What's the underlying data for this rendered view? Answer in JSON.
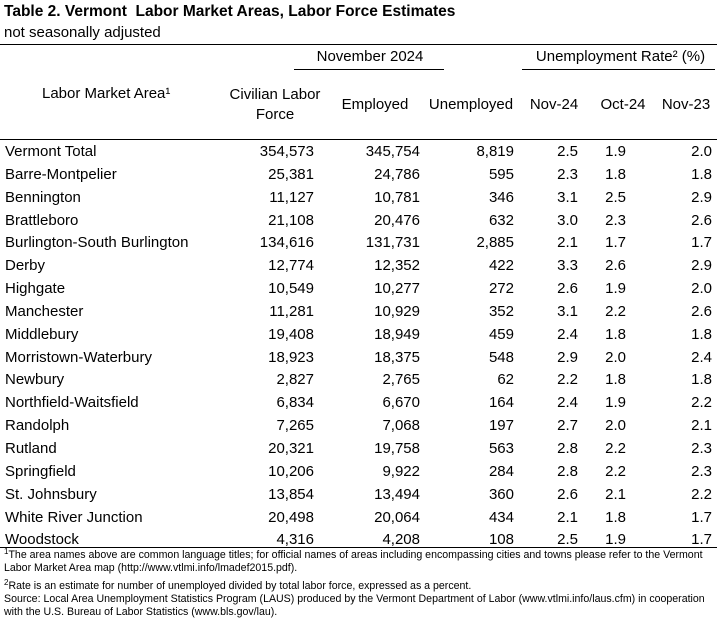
{
  "title": "Table 2. Vermont  Labor Market Areas, Labor Force Estimates",
  "subtitle": "not seasonally adjusted",
  "header": {
    "group_november": "November 2024",
    "group_rate": "Unemployment Rate² (%)",
    "area": "Labor Market Area¹",
    "civilian_line1": "Civilian Labor",
    "civilian_line2": "Force",
    "employed": "Employed",
    "unemployed": "Unemployed",
    "nov24": "Nov-24",
    "oct24": "Oct-24",
    "nov23": "Nov-23"
  },
  "rows": [
    {
      "area": "Vermont Total",
      "force": "354,573",
      "employed": "345,754",
      "unemployed": "8,819",
      "nov24": "2.5",
      "oct24": "1.9",
      "nov23": "2.0"
    },
    {
      "area": "Barre-Montpelier",
      "force": "25,381",
      "employed": "24,786",
      "unemployed": "595",
      "nov24": "2.3",
      "oct24": "1.8",
      "nov23": "1.8"
    },
    {
      "area": "Bennington",
      "force": "11,127",
      "employed": "10,781",
      "unemployed": "346",
      "nov24": "3.1",
      "oct24": "2.5",
      "nov23": "2.9"
    },
    {
      "area": "Brattleboro",
      "force": "21,108",
      "employed": "20,476",
      "unemployed": "632",
      "nov24": "3.0",
      "oct24": "2.3",
      "nov23": "2.6"
    },
    {
      "area": "Burlington-South Burlington",
      "force": "134,616",
      "employed": "131,731",
      "unemployed": "2,885",
      "nov24": "2.1",
      "oct24": "1.7",
      "nov23": "1.7"
    },
    {
      "area": "Derby",
      "force": "12,774",
      "employed": "12,352",
      "unemployed": "422",
      "nov24": "3.3",
      "oct24": "2.6",
      "nov23": "2.9"
    },
    {
      "area": "Highgate",
      "force": "10,549",
      "employed": "10,277",
      "unemployed": "272",
      "nov24": "2.6",
      "oct24": "1.9",
      "nov23": "2.0"
    },
    {
      "area": "Manchester",
      "force": "11,281",
      "employed": "10,929",
      "unemployed": "352",
      "nov24": "3.1",
      "oct24": "2.2",
      "nov23": "2.6"
    },
    {
      "area": "Middlebury",
      "force": "19,408",
      "employed": "18,949",
      "unemployed": "459",
      "nov24": "2.4",
      "oct24": "1.8",
      "nov23": "1.8"
    },
    {
      "area": "Morristown-Waterbury",
      "force": "18,923",
      "employed": "18,375",
      "unemployed": "548",
      "nov24": "2.9",
      "oct24": "2.0",
      "nov23": "2.4"
    },
    {
      "area": "Newbury",
      "force": "2,827",
      "employed": "2,765",
      "unemployed": "62",
      "nov24": "2.2",
      "oct24": "1.8",
      "nov23": "1.8"
    },
    {
      "area": "Northfield-Waitsfield",
      "force": "6,834",
      "employed": "6,670",
      "unemployed": "164",
      "nov24": "2.4",
      "oct24": "1.9",
      "nov23": "2.2"
    },
    {
      "area": "Randolph",
      "force": "7,265",
      "employed": "7,068",
      "unemployed": "197",
      "nov24": "2.7",
      "oct24": "2.0",
      "nov23": "2.1"
    },
    {
      "area": "Rutland",
      "force": "20,321",
      "employed": "19,758",
      "unemployed": "563",
      "nov24": "2.8",
      "oct24": "2.2",
      "nov23": "2.3"
    },
    {
      "area": "Springfield",
      "force": "10,206",
      "employed": "9,922",
      "unemployed": "284",
      "nov24": "2.8",
      "oct24": "2.2",
      "nov23": "2.3"
    },
    {
      "area": "St. Johnsbury",
      "force": "13,854",
      "employed": "13,494",
      "unemployed": "360",
      "nov24": "2.6",
      "oct24": "2.1",
      "nov23": "2.2"
    },
    {
      "area": "White River Junction",
      "force": "20,498",
      "employed": "20,064",
      "unemployed": "434",
      "nov24": "2.1",
      "oct24": "1.8",
      "nov23": "1.7"
    },
    {
      "area": "Woodstock",
      "force": "4,316",
      "employed": "4,208",
      "unemployed": "108",
      "nov24": "2.5",
      "oct24": "1.9",
      "nov23": "1.7"
    }
  ],
  "footnotes": {
    "note1_marker": "1",
    "note1_text": "The area names above are common language titles; for official names of areas including encompassing cities and towns please refer to the Vermont Labor Market Area map (http://www.vtlmi.info/lmadef2015.pdf).",
    "note2_marker": "2",
    "note2_text": "Rate is an estimate for number of unemployed divided by total labor force, expressed as a percent.",
    "source": "Source:   Local Area Unemployment Statistics Program (LAUS) produced by the Vermont Department of Labor (www.vtlmi.info/laus.cfm) in cooperation with the U.S. Bureau of Labor Statistics (www.bls.gov/lau)."
  }
}
